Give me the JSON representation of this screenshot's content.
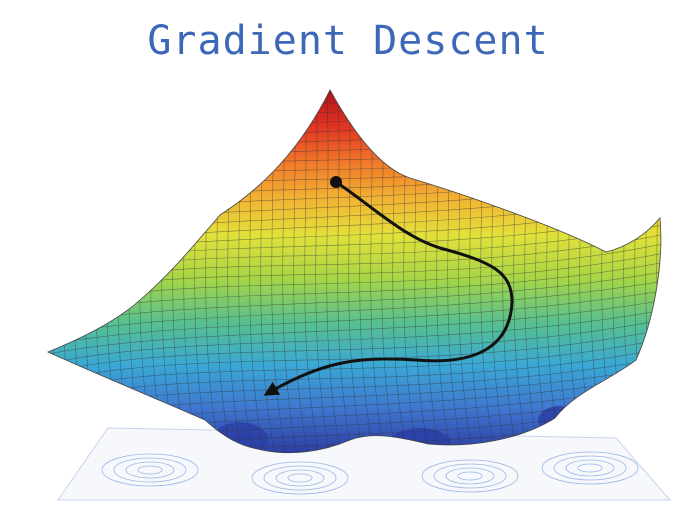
{
  "title": "Gradient Descent",
  "colors": {
    "title": "#3d68b8",
    "path": "#111111",
    "mesh_line": "#333333",
    "surface_low": "#2b3fa8",
    "surface_mid": "#e5e23a",
    "surface_high": "#c8141b",
    "contour": "#9bb7e6"
  },
  "surface": {
    "colormap": "jet",
    "mesh": true,
    "contour_plane": true
  },
  "path": {
    "start_marker": "dot",
    "end_marker": "arrowhead"
  }
}
